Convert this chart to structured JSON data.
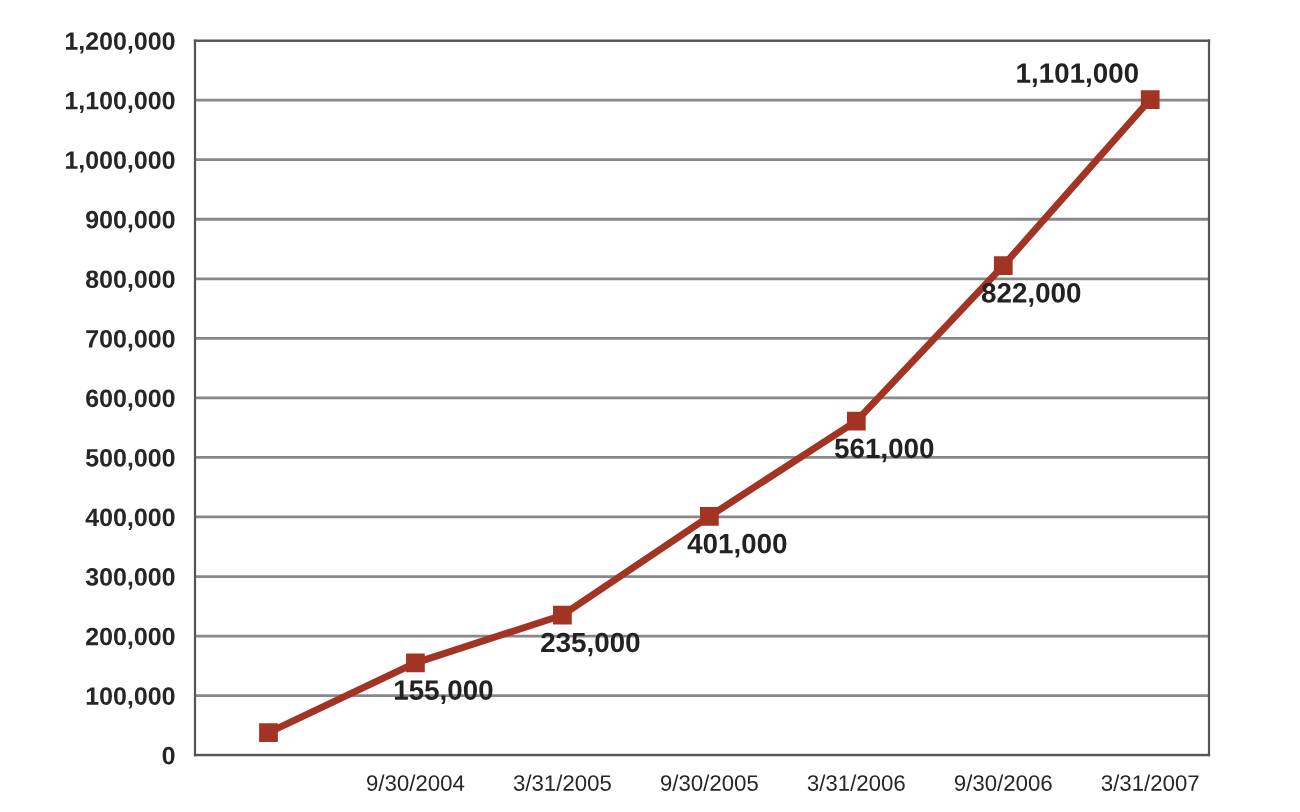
{
  "chart_data": {
    "type": "line",
    "categories": [
      null,
      "9/30/2004",
      "3/31/2005",
      "9/30/2005",
      "3/31/2006",
      "9/30/2006",
      "3/31/2007"
    ],
    "series": [
      {
        "color": "#a33424",
        "values": [
          38000,
          155000,
          235000,
          401000,
          561000,
          822000,
          1101000
        ],
        "value_labels": [
          null,
          "155,000",
          "235,000",
          "401,000",
          "561,000",
          "822,000",
          "1,101,000"
        ]
      }
    ],
    "ylim": [
      0,
      1200000
    ],
    "yticks": [
      {
        "value": 0,
        "label": "0"
      },
      {
        "value": 100000,
        "label": "100,000"
      },
      {
        "value": 200000,
        "label": "200,000"
      },
      {
        "value": 300000,
        "label": "300,000"
      },
      {
        "value": 400000,
        "label": "400,000"
      },
      {
        "value": 500000,
        "label": "500,000"
      },
      {
        "value": 600000,
        "label": "600,000"
      },
      {
        "value": 700000,
        "label": "700,000"
      },
      {
        "value": 800000,
        "label": "800,000"
      },
      {
        "value": 900000,
        "label": "900,000"
      },
      {
        "value": 1000000,
        "label": "1,000,000"
      },
      {
        "value": 1100000,
        "label": "1,100,000"
      },
      {
        "value": 1200000,
        "label": "1,200,000"
      }
    ],
    "grid": "y",
    "marker": "square",
    "line_style": "solid",
    "legend": false
  }
}
